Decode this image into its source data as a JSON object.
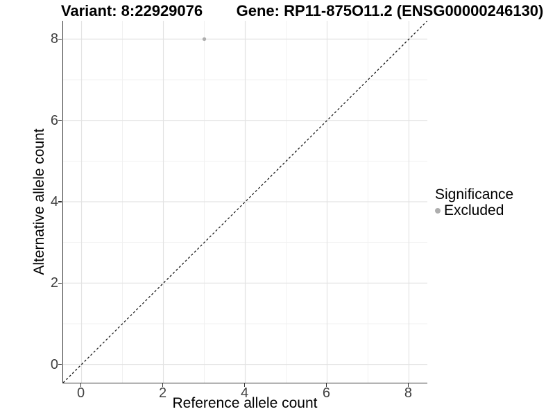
{
  "titles": {
    "variant": "Variant: 8:22929076",
    "gene": "Gene: RP11-875O11.2 (ENSG00000246130)"
  },
  "legend": {
    "title": "Significance",
    "items": [
      {
        "label": "Excluded",
        "color": "#aeaeae"
      }
    ]
  },
  "chart_data": {
    "type": "scatter",
    "title_left": "Variant: 8:22929076",
    "title_right": "Gene: RP11-875O11.2 (ENSG00000246130)",
    "xlabel": "Reference allele count",
    "ylabel": "Alternative allele count",
    "xlim": [
      -0.45,
      8.45
    ],
    "ylim": [
      -0.45,
      8.45
    ],
    "x_major_ticks": [
      0,
      2,
      4,
      6,
      8
    ],
    "x_minor_ticks": [
      1,
      3,
      5,
      7
    ],
    "y_major_ticks": [
      0,
      2,
      4,
      6,
      8
    ],
    "y_minor_ticks": [
      1,
      3,
      5,
      7
    ],
    "grid": true,
    "legend_position": "right",
    "identity_line": {
      "equation": "y = x",
      "style": "dashed",
      "color": "#1a1a1a"
    },
    "series": [
      {
        "name": "Excluded",
        "color": "#aeaeae",
        "points": [
          {
            "x": 3,
            "y": 8
          }
        ]
      }
    ]
  },
  "colors": {
    "grid_major": "#e3e3e3",
    "grid_minor": "#f1f1f1",
    "axis_line": "#333333",
    "tick_label": "#404040",
    "title": "#000000"
  }
}
